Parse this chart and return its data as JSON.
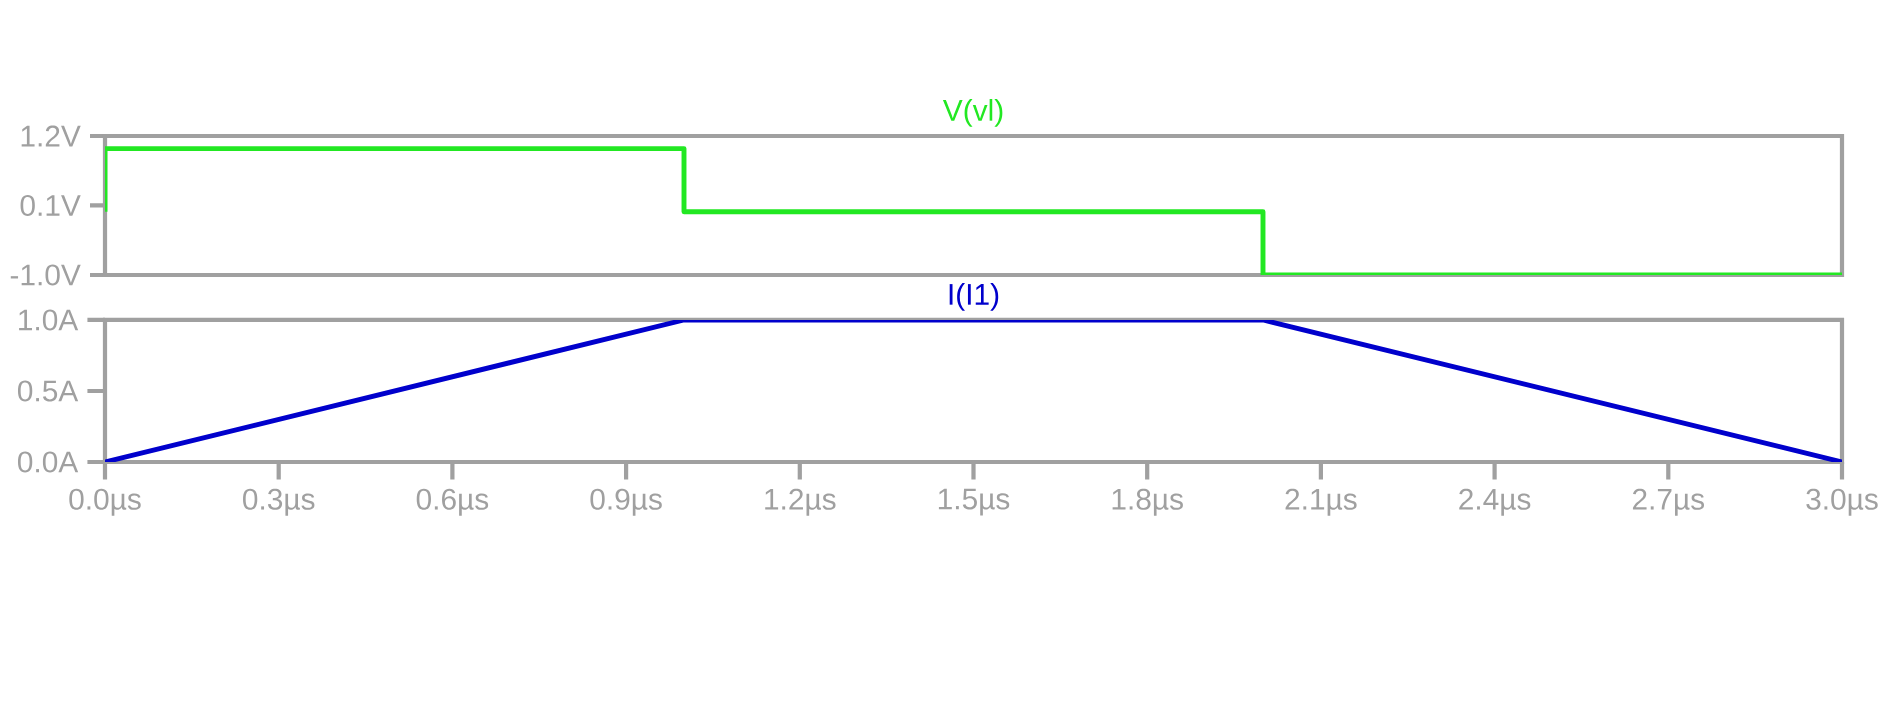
{
  "chart_data": [
    {
      "type": "line",
      "title": "V(vl)",
      "x": [
        0,
        0,
        1.0,
        1.0,
        1.0,
        2.0,
        2.0,
        2.0,
        3.0
      ],
      "series": [
        {
          "color": "#22e822",
          "values": [
            0.0,
            1.0,
            1.0,
            0.3,
            0.0,
            0.0,
            -0.6,
            -1.0,
            -1.0
          ]
        }
      ],
      "xlim": [
        0,
        3.0
      ],
      "ylim": [
        -1.0,
        1.2
      ],
      "yticks": [
        {
          "value": -1.0,
          "label": "-1.0V"
        },
        {
          "value": 0.1,
          "label": "0.1V"
        },
        {
          "value": 1.2,
          "label": "1.2V"
        }
      ],
      "tick_labels": "y"
    },
    {
      "type": "line",
      "title": "I(I1)",
      "x": [
        0,
        1.0,
        2.0,
        3.0
      ],
      "series": [
        {
          "color": "#0000cc",
          "values": [
            0.0,
            1.0,
            1.0,
            0.0
          ]
        }
      ],
      "xlim": [
        0,
        3.0
      ],
      "xticks": [
        {
          "value": 0,
          "label": "0.0µs"
        },
        {
          "value": 0.3,
          "label": "0.3µs"
        },
        {
          "value": 0.6,
          "label": "0.6µs"
        },
        {
          "value": 0.9,
          "label": "0.9µs"
        },
        {
          "value": 1.2,
          "label": "1.2µs"
        },
        {
          "value": 1.5,
          "label": "1.5µs"
        },
        {
          "value": 1.8,
          "label": "1.8µs"
        },
        {
          "value": 2.1,
          "label": "2.1µs"
        },
        {
          "value": 2.4,
          "label": "2.4µs"
        },
        {
          "value": 2.7,
          "label": "2.7µs"
        },
        {
          "value": 3.0,
          "label": "3.0µs"
        }
      ],
      "ylim": [
        0.0,
        1.0
      ],
      "yticks": [
        {
          "value": 0.0,
          "label": "0.0A"
        },
        {
          "value": 0.5,
          "label": "0.5A"
        },
        {
          "value": 1.0,
          "label": "1.0A"
        }
      ]
    }
  ]
}
